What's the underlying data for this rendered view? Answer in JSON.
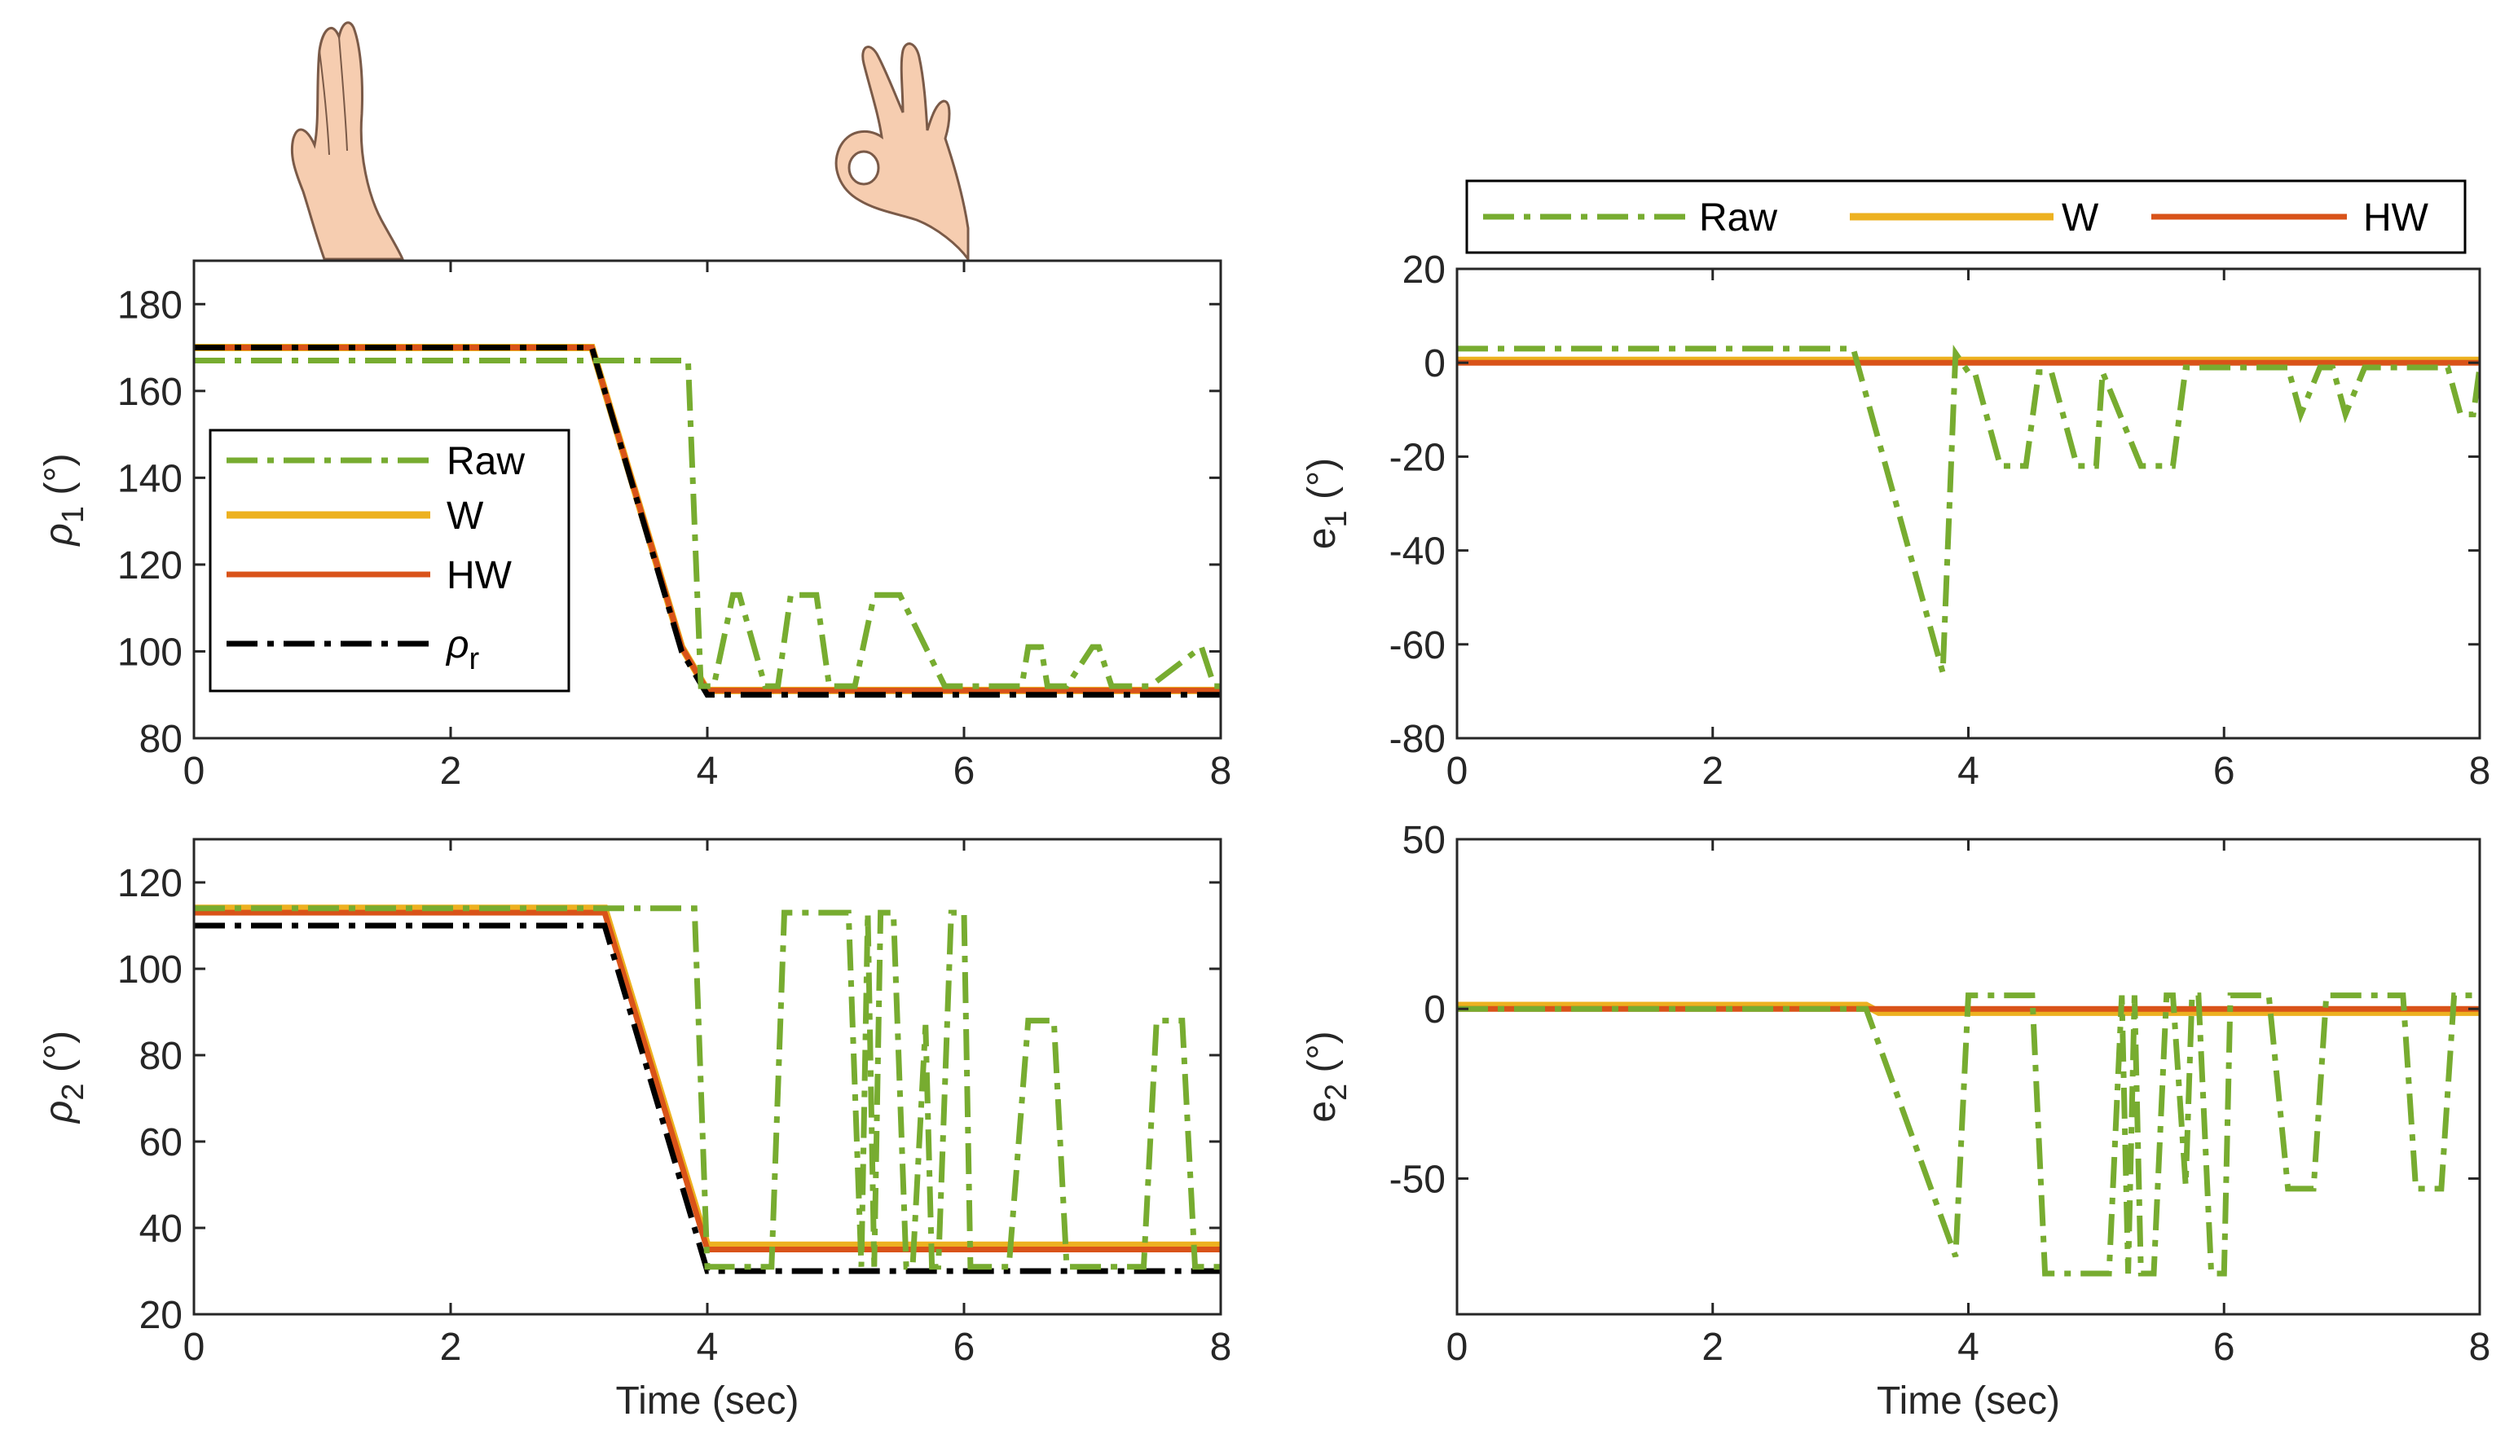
{
  "colors": {
    "raw": "#77AC30",
    "w": "#EDB120",
    "hw": "#D95319",
    "ref": "#000000",
    "axis": "#262626"
  },
  "gesture_icons": [
    {
      "name": "two-fingers-hand-icon",
      "description_hidden": true
    },
    {
      "name": "ok-sign-hand-icon",
      "description_hidden": true
    }
  ],
  "legend_top_right": {
    "items": [
      "Raw",
      "W",
      "HW"
    ]
  },
  "chart_data": [
    {
      "id": "rho1",
      "type": "line",
      "ylabel_main": "ρ",
      "ylabel_sub": "1",
      "ylabel_unit": "(°)",
      "xlabel": "",
      "xlim": [
        0,
        8
      ],
      "ylim": [
        80,
        190
      ],
      "xticks": [
        "0",
        "2",
        "4",
        "6",
        "8"
      ],
      "xtick_values": [
        0,
        2,
        4,
        6,
        8
      ],
      "yticks": [
        "80",
        "100",
        "120",
        "140",
        "160",
        "180"
      ],
      "ytick_values": [
        80,
        100,
        120,
        140,
        160,
        180
      ],
      "legend": {
        "placement": "center-left",
        "items": [
          "Raw",
          "W",
          "HW",
          "ρ"
        ],
        "ref_sub": "r"
      },
      "series": [
        {
          "name": "Raw",
          "style": "dashdot",
          "color": "raw",
          "x": [
            0,
            3.85,
            3.95,
            4.05,
            4.2,
            4.25,
            4.45,
            4.55,
            4.65,
            4.85,
            4.95,
            5.15,
            5.3,
            5.45,
            5.5,
            5.85,
            5.9,
            6.45,
            6.5,
            6.6,
            6.65,
            6.75,
            6.8,
            7.0,
            7.05,
            7.15,
            7.25,
            7.45,
            7.85,
            7.95,
            8.0
          ],
          "values": [
            167,
            167,
            92,
            92,
            113,
            113,
            92,
            92,
            113,
            113,
            92,
            92,
            113,
            113,
            113,
            92,
            92,
            92,
            101,
            101,
            92,
            92,
            92,
            101,
            101,
            92,
            92,
            92,
            101,
            92,
            92
          ]
        },
        {
          "name": "W",
          "style": "solid",
          "color": "w",
          "x": [
            0,
            3.1,
            3.8,
            4.0,
            8.0
          ],
          "values": [
            170,
            170,
            101,
            91,
            91
          ]
        },
        {
          "name": "HW",
          "style": "solid",
          "color": "hw",
          "x": [
            0,
            3.1,
            3.8,
            4.0,
            8.0
          ],
          "values": [
            170,
            170,
            101,
            91,
            91
          ]
        },
        {
          "name": "ρr",
          "style": "dashdot",
          "color": "ref",
          "x": [
            0,
            3.1,
            3.8,
            4.0,
            8.0
          ],
          "values": [
            170,
            170,
            100,
            90,
            90
          ]
        }
      ]
    },
    {
      "id": "e1",
      "type": "line",
      "ylabel_main": "e",
      "ylabel_sub": "1",
      "ylabel_unit": "(°)",
      "xlabel": "",
      "xlim": [
        0,
        8
      ],
      "ylim": [
        -80,
        20
      ],
      "xticks": [
        "0",
        "2",
        "4",
        "6",
        "8"
      ],
      "xtick_values": [
        0,
        2,
        4,
        6,
        8
      ],
      "yticks": [
        "-80",
        "-60",
        "-40",
        "-20",
        "0",
        "20"
      ],
      "ytick_values": [
        -80,
        -60,
        -40,
        -20,
        0,
        20
      ],
      "series": [
        {
          "name": "Raw",
          "style": "dashdot",
          "color": "raw",
          "x": [
            0,
            3.1,
            3.8,
            3.9,
            4.0,
            4.05,
            4.25,
            4.45,
            4.55,
            4.65,
            4.85,
            5.0,
            5.05,
            5.35,
            5.6,
            5.7,
            6.5,
            6.6,
            6.75,
            6.85,
            6.95,
            7.1,
            7.75,
            7.85,
            7.95,
            8.0
          ],
          "values": [
            3,
            3,
            -66,
            2,
            -2,
            -2,
            -22,
            -22,
            -2,
            -2,
            -22,
            -22,
            -2,
            -22,
            -22,
            -1,
            -1,
            -11,
            -1,
            -1,
            -11,
            -1,
            -1,
            -11,
            -11,
            -1
          ]
        },
        {
          "name": "W",
          "style": "solid",
          "color": "w",
          "x": [
            0,
            8
          ],
          "values": [
            0.5,
            0.5
          ]
        },
        {
          "name": "HW",
          "style": "solid",
          "color": "hw",
          "x": [
            0,
            8
          ],
          "values": [
            0,
            0
          ]
        }
      ]
    },
    {
      "id": "rho2",
      "type": "line",
      "ylabel_main": "ρ",
      "ylabel_sub": "2",
      "ylabel_unit": "(°)",
      "xlabel": "Time (sec)",
      "xlim": [
        0,
        8
      ],
      "ylim": [
        20,
        130
      ],
      "xticks": [
        "0",
        "2",
        "4",
        "6",
        "8"
      ],
      "xtick_values": [
        0,
        2,
        4,
        6,
        8
      ],
      "yticks": [
        "20",
        "40",
        "60",
        "80",
        "100",
        "120"
      ],
      "ytick_values": [
        20,
        40,
        60,
        80,
        100,
        120
      ],
      "series": [
        {
          "name": "Raw",
          "style": "dashdot",
          "color": "raw",
          "x": [
            0,
            3.9,
            4.0,
            4.5,
            4.6,
            5.1,
            5.2,
            5.25,
            5.3,
            5.35,
            5.45,
            5.55,
            5.6,
            5.7,
            5.75,
            5.8,
            5.9,
            6.0,
            6.05,
            6.35,
            6.5,
            6.7,
            6.8,
            7.4,
            7.5,
            7.7,
            7.8,
            8.0
          ],
          "values": [
            114,
            114,
            31,
            31,
            113,
            113,
            31,
            113,
            31,
            113,
            113,
            31,
            31,
            87,
            31,
            31,
            113,
            113,
            31,
            31,
            88,
            88,
            31,
            31,
            88,
            88,
            31,
            31
          ]
        },
        {
          "name": "W",
          "style": "solid",
          "color": "w",
          "x": [
            0,
            3.2,
            4.0,
            8.0
          ],
          "values": [
            114,
            114,
            36,
            36
          ]
        },
        {
          "name": "HW",
          "style": "solid",
          "color": "hw",
          "x": [
            0,
            3.2,
            4.0,
            8.0
          ],
          "values": [
            113,
            113,
            35,
            35
          ]
        },
        {
          "name": "ρr",
          "style": "dashdot",
          "color": "ref",
          "x": [
            0,
            3.2,
            4.0,
            8.0
          ],
          "values": [
            110,
            110,
            30,
            30
          ]
        }
      ]
    },
    {
      "id": "e2",
      "type": "line",
      "ylabel_main": "e",
      "ylabel_sub": "2",
      "ylabel_unit": "(°)",
      "xlabel": "Time (sec)",
      "xlim": [
        0,
        8
      ],
      "ylim": [
        -90,
        50
      ],
      "xticks": [
        "0",
        "2",
        "4",
        "6",
        "8"
      ],
      "xtick_values": [
        0,
        2,
        4,
        6,
        8
      ],
      "yticks": [
        "-50",
        "0",
        "50"
      ],
      "ytick_values": [
        -50,
        0,
        50
      ],
      "series": [
        {
          "name": "Raw",
          "style": "dashdot",
          "color": "raw",
          "x": [
            0,
            3.2,
            3.9,
            4.0,
            4.5,
            4.6,
            5.1,
            5.2,
            5.25,
            5.3,
            5.35,
            5.45,
            5.55,
            5.6,
            5.7,
            5.75,
            5.8,
            5.9,
            6.0,
            6.05,
            6.35,
            6.5,
            6.7,
            6.8,
            7.4,
            7.5,
            7.7,
            7.8,
            8.0
          ],
          "values": [
            0,
            0,
            -73,
            4,
            4,
            -78,
            -78,
            4,
            -78,
            4,
            -78,
            -78,
            4,
            4,
            -52,
            4,
            4,
            -78,
            -78,
            4,
            4,
            -53,
            -53,
            4,
            4,
            -53,
            -53,
            4,
            4
          ]
        },
        {
          "name": "W",
          "style": "solid",
          "color": "w",
          "x": [
            0,
            3.2,
            3.3,
            8.0
          ],
          "values": [
            1,
            1,
            -1,
            -1
          ]
        },
        {
          "name": "HW",
          "style": "solid",
          "color": "hw",
          "x": [
            0,
            8
          ],
          "values": [
            0,
            0
          ]
        }
      ]
    }
  ]
}
